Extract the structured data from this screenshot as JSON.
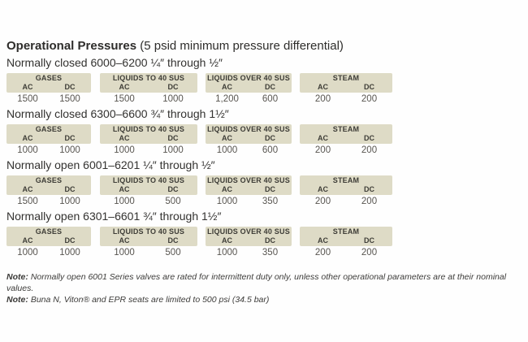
{
  "page": {
    "title_bold": "Operational Pressures",
    "title_rest": " (5 psid minimum pressure differential)"
  },
  "columns": {
    "subheaders": [
      "AC",
      "DC"
    ]
  },
  "sections": [
    {
      "heading": "Normally closed 6000–6200 ¼″ through ½″",
      "blocks": [
        {
          "label": "GASES",
          "ac": "1500",
          "dc": "1500"
        },
        {
          "label": "LIQUIDS TO 40 SUS",
          "ac": "1500",
          "dc": "1000"
        },
        {
          "label": "LIQUIDS OVER 40 SUS",
          "ac": "1,200",
          "dc": "600"
        },
        {
          "label": "STEAM",
          "ac": "200",
          "dc": "200"
        }
      ]
    },
    {
      "heading": "Normally closed 6300–6600 ¾″ through 1½″",
      "blocks": [
        {
          "label": "GASES",
          "ac": "1000",
          "dc": "1000"
        },
        {
          "label": "LIQUIDS TO 40 SUS",
          "ac": "1000",
          "dc": "1000"
        },
        {
          "label": "LIQUIDS OVER 40 SUS",
          "ac": "1000",
          "dc": "600"
        },
        {
          "label": "STEAM",
          "ac": "200",
          "dc": "200"
        }
      ]
    },
    {
      "heading": "Normally open 6001–6201 ¼″ through ½″",
      "blocks": [
        {
          "label": "GASES",
          "ac": "1500",
          "dc": "1000"
        },
        {
          "label": "LIQUIDS TO 40 SUS",
          "ac": "1000",
          "dc": "500"
        },
        {
          "label": "LIQUIDS OVER 40 SUS",
          "ac": "1000",
          "dc": "350"
        },
        {
          "label": "STEAM",
          "ac": "200",
          "dc": "200"
        }
      ]
    },
    {
      "heading": "Normally open 6301–6601 ¾″ through 1½″",
      "blocks": [
        {
          "label": "GASES",
          "ac": "1000",
          "dc": "1000"
        },
        {
          "label": "LIQUIDS TO 40 SUS",
          "ac": "1000",
          "dc": "500"
        },
        {
          "label": "LIQUIDS OVER 40 SUS",
          "ac": "1000",
          "dc": "350"
        },
        {
          "label": "STEAM",
          "ac": "200",
          "dc": "200"
        }
      ]
    }
  ],
  "notes": [
    {
      "label": "Note:",
      "text": "Normally open 6001 Series valves are rated for intermittent duty only, unless other operational parameters are at their nominal values."
    },
    {
      "label": "Note:",
      "text": "Buna N, Viton® and EPR seats are limited to 500 psi (34.5 bar)"
    }
  ],
  "colors": {
    "band_background": "#dedbc6",
    "band_text": "#3e3d37",
    "value_text": "#585550"
  }
}
